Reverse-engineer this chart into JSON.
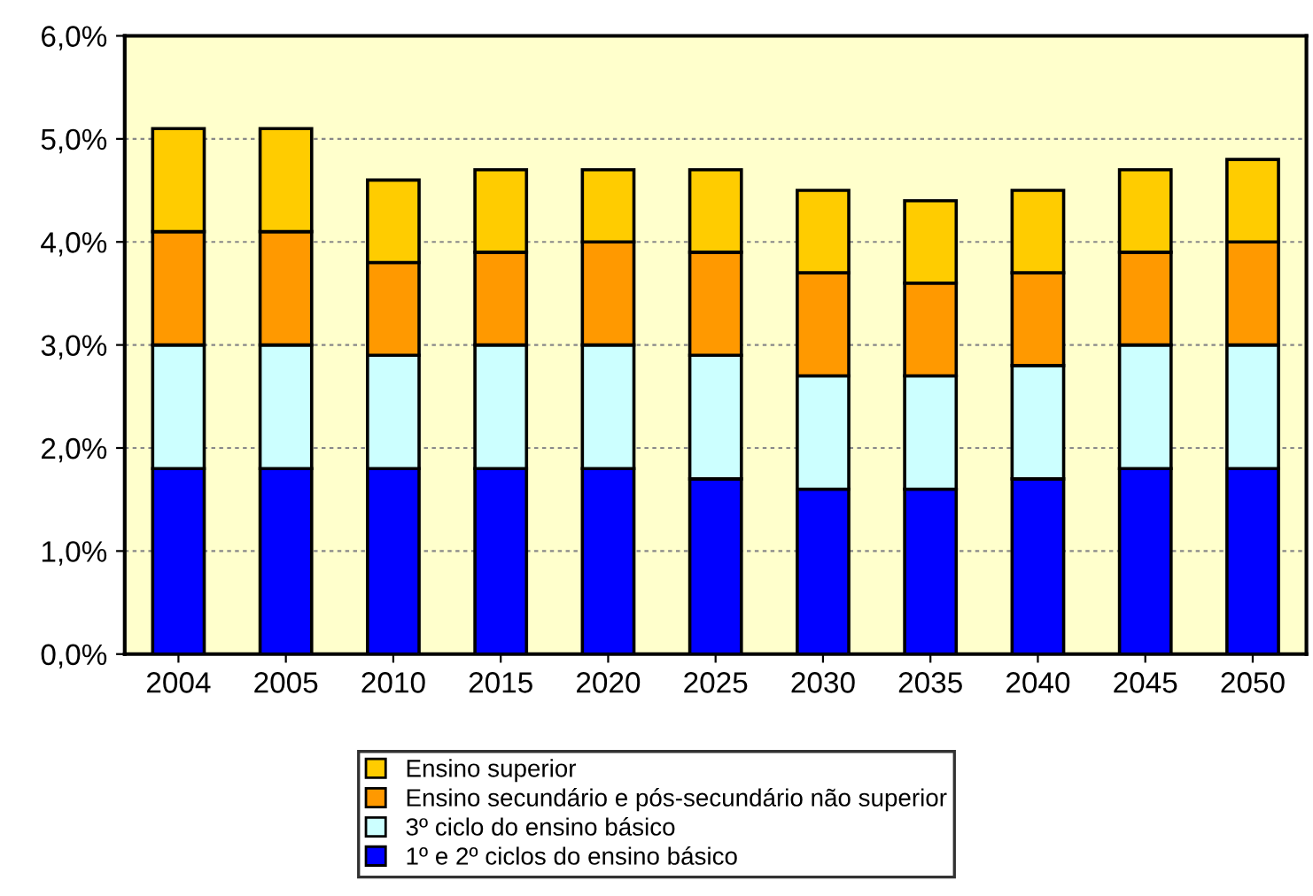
{
  "chart_data": {
    "type": "bar",
    "stacked": true,
    "categories": [
      "2004",
      "2005",
      "2010",
      "2015",
      "2020",
      "2025",
      "2030",
      "2035",
      "2040",
      "2045",
      "2050"
    ],
    "series": [
      {
        "name": "1º e 2º ciclos do ensino básico",
        "color": "#0000ff",
        "values": [
          1.8,
          1.8,
          1.8,
          1.8,
          1.8,
          1.7,
          1.6,
          1.6,
          1.7,
          1.8,
          1.8
        ]
      },
      {
        "name": "3º ciclo do ensino básico",
        "color": "#ccffff",
        "values": [
          1.2,
          1.2,
          1.1,
          1.2,
          1.2,
          1.2,
          1.1,
          1.1,
          1.1,
          1.2,
          1.2
        ]
      },
      {
        "name": "Ensino secundário e pós-secundário não superior",
        "color": "#ff9900",
        "values": [
          1.1,
          1.1,
          0.9,
          0.9,
          1.0,
          1.0,
          1.0,
          0.9,
          0.9,
          0.9,
          1.0
        ]
      },
      {
        "name": "Ensino superior",
        "color": "#ffcc00",
        "values": [
          1.0,
          1.0,
          0.8,
          0.8,
          0.7,
          0.8,
          0.8,
          0.8,
          0.8,
          0.8,
          0.8
        ]
      }
    ],
    "ylim": [
      0,
      6
    ],
    "yticks": [
      {
        "value": 0,
        "label": "0,0%"
      },
      {
        "value": 1,
        "label": "1,0%"
      },
      {
        "value": 2,
        "label": "2,0%"
      },
      {
        "value": 3,
        "label": "3,0%"
      },
      {
        "value": 4,
        "label": "4,0%"
      },
      {
        "value": 5,
        "label": "5,0%"
      },
      {
        "value": 6,
        "label": "6,0%"
      }
    ],
    "grid": "y",
    "legend": "bottom"
  }
}
